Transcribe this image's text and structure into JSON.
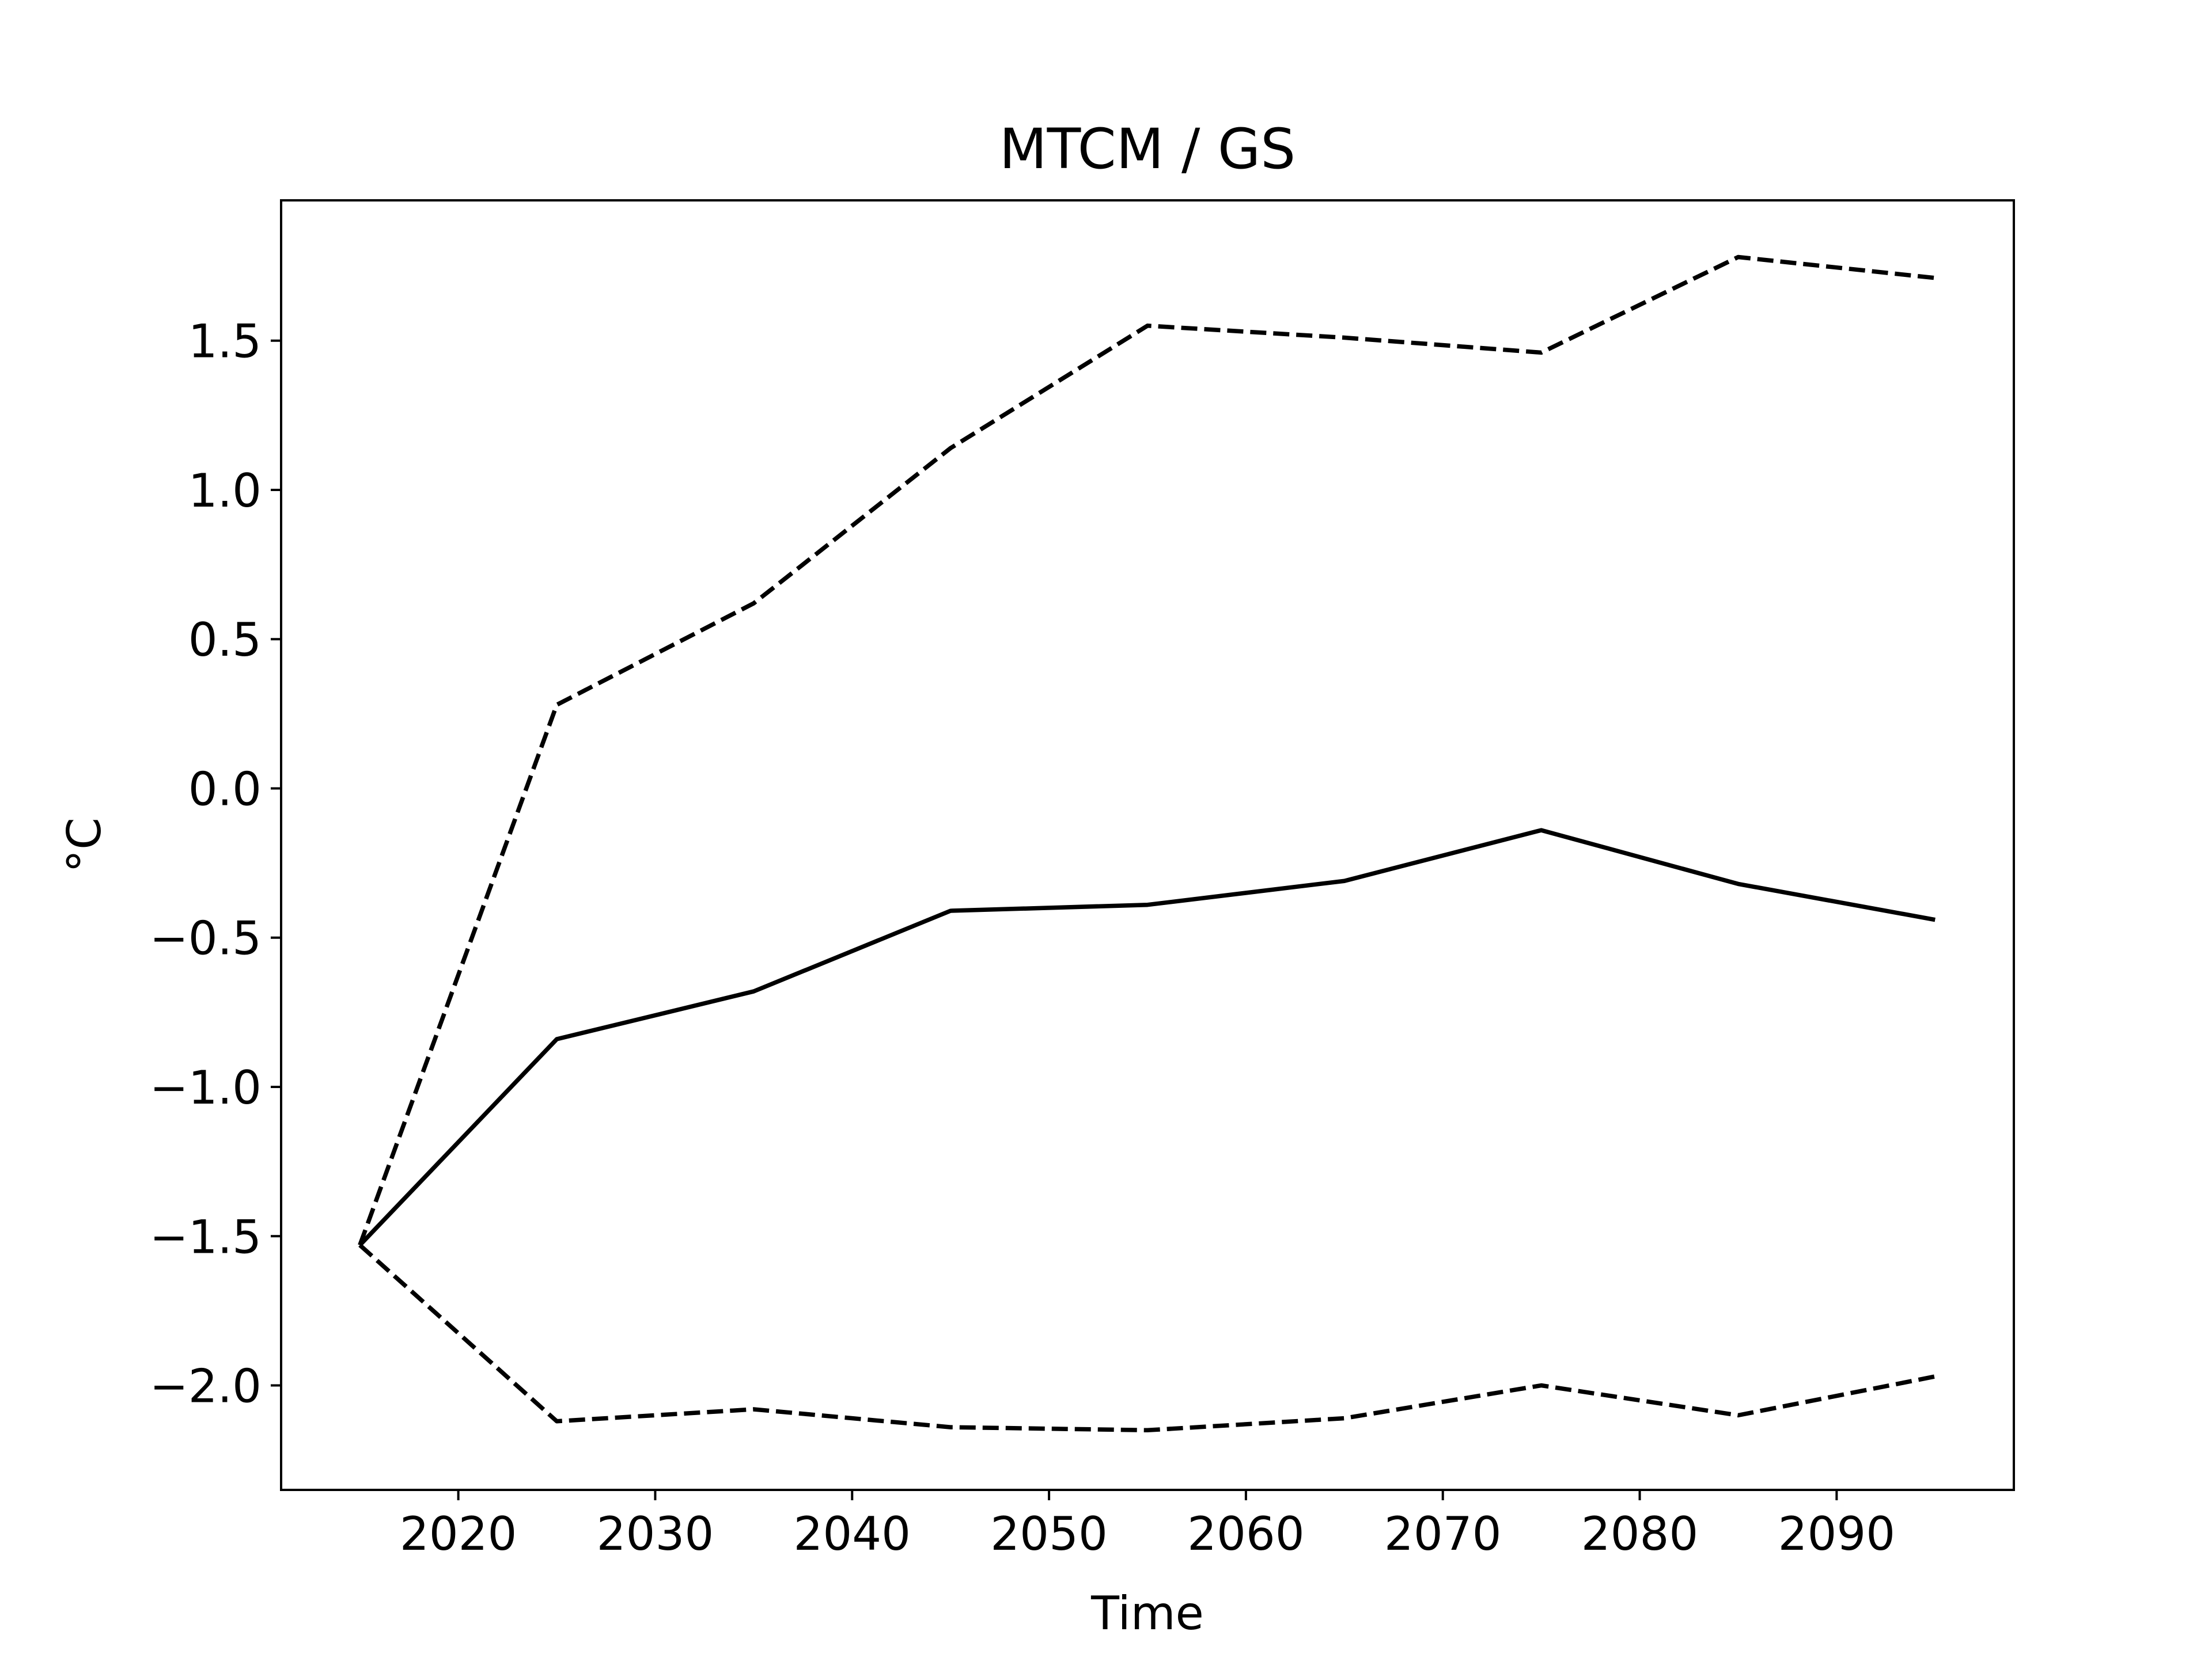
{
  "chart_data": {
    "type": "line",
    "title": "MTCM / GS",
    "xlabel": "Time",
    "ylabel": "°C",
    "xlim": [
      2011,
      2099
    ],
    "ylim": [
      -2.35,
      1.97
    ],
    "x_ticks": [
      2020,
      2030,
      2040,
      2050,
      2060,
      2070,
      2080,
      2090
    ],
    "x_tick_labels": [
      "2020",
      "2030",
      "2040",
      "2050",
      "2060",
      "2070",
      "2080",
      "2090"
    ],
    "y_ticks": [
      1.5,
      1.0,
      0.5,
      0.0,
      -0.5,
      -1.0,
      -1.5,
      -2.0
    ],
    "y_tick_labels": [
      "1.5",
      "1.0",
      "0.5",
      "0.0",
      "−0.5",
      "−1.0",
      "−1.5",
      "−2.0"
    ],
    "grid": false,
    "x": [
      2015,
      2025,
      2035,
      2045,
      2055,
      2065,
      2075,
      2085,
      2095
    ],
    "series": [
      {
        "style": "solid",
        "color": "#000000",
        "values": [
          -1.53,
          -0.84,
          -0.68,
          -0.41,
          -0.39,
          -0.31,
          -0.14,
          -0.32,
          -0.44
        ]
      },
      {
        "style": "dashed",
        "color": "#000000",
        "values": [
          -1.53,
          0.28,
          0.62,
          1.14,
          1.55,
          1.51,
          1.46,
          1.78,
          1.71
        ]
      },
      {
        "style": "dashed",
        "color": "#000000",
        "values": [
          -1.53,
          -2.12,
          -2.08,
          -2.14,
          -2.15,
          -2.11,
          -2.0,
          -2.1,
          -1.97
        ]
      }
    ]
  }
}
